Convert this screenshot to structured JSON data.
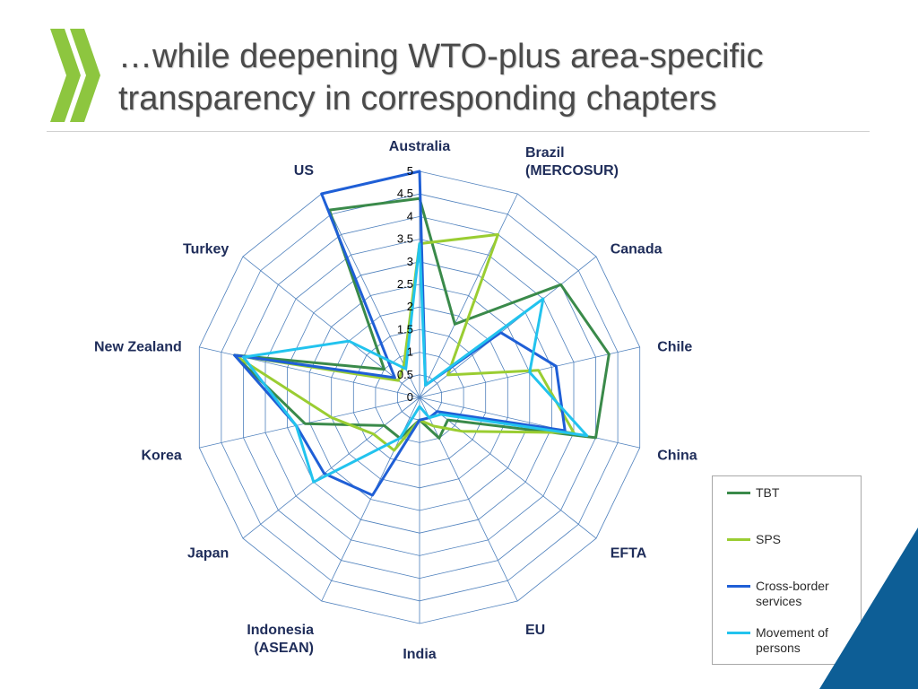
{
  "slide": {
    "title_line1": "…while deepening WTO-plus area-specific",
    "title_line2": "transparency in corresponding chapters"
  },
  "colors": {
    "chevron": "#8dc63f",
    "corner_triangle": "#0d5e96",
    "grid": "#4f81bd",
    "label": "#1f2d5a"
  },
  "chart_data": {
    "type": "radar",
    "title": "",
    "categories": [
      "Australia",
      "Brazil (MERCOSUR)",
      "Canada",
      "Chile",
      "China",
      "EFTA",
      "EU",
      "India",
      "Indonesia (ASEAN)",
      "Japan",
      "Korea",
      "New Zealand",
      "Turkey",
      "US"
    ],
    "category_lines": [
      [
        "Australia"
      ],
      [
        "Brazil",
        "(MERCOSUR)"
      ],
      [
        "Canada"
      ],
      [
        "Chile"
      ],
      [
        "China"
      ],
      [
        "EFTA"
      ],
      [
        "EU"
      ],
      [
        "India"
      ],
      [
        "Indonesia",
        "(ASEAN)"
      ],
      [
        "Japan"
      ],
      [
        "Korea"
      ],
      [
        "New Zealand"
      ],
      [
        "Turkey"
      ],
      [
        "US"
      ]
    ],
    "rlim": [
      0,
      5
    ],
    "ticks": [
      0,
      0.5,
      1,
      1.5,
      2,
      2.5,
      3,
      3.5,
      4,
      4.5,
      5
    ],
    "tick_labels": [
      "0",
      "0.5",
      "1",
      "1.5",
      "2",
      "2.5",
      "3",
      "3.5",
      "4",
      "4.5",
      "5"
    ],
    "grid": true,
    "legend_position": "bottom-right",
    "series": [
      {
        "name": "TBT",
        "color": "#3a8a4a",
        "values": [
          4.4,
          1.8,
          4.0,
          4.3,
          4.0,
          0.8,
          1.0,
          0.5,
          1.0,
          1.0,
          2.6,
          4.2,
          1.0,
          4.6
        ]
      },
      {
        "name": "SPS",
        "color": "#9acd32",
        "values": [
          3.4,
          4.0,
          0.8,
          2.7,
          3.5,
          1.2,
          0.7,
          0.5,
          1.3,
          1.3,
          2.0,
          4.2,
          0.6,
          0.8
        ]
      },
      {
        "name": "Cross-border services",
        "color": "#1f5fd6",
        "values": [
          5.0,
          0.3,
          2.3,
          3.1,
          3.3,
          0.5,
          0.5,
          0.5,
          2.4,
          2.7,
          2.8,
          4.2,
          0.7,
          5.0
        ]
      },
      {
        "name": "Movement of persons",
        "color": "#22c3ee",
        "values": [
          3.4,
          0.3,
          3.5,
          2.5,
          3.8,
          0.6,
          0.5,
          0.2,
          1.0,
          3.0,
          2.8,
          4.0,
          2.0,
          0.7
        ]
      }
    ]
  }
}
